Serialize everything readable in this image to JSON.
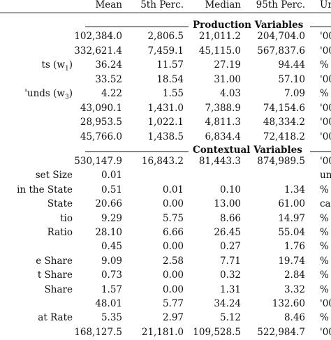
{
  "header": {
    "mean": "Mean",
    "p5": "5th Perc.",
    "median": "Median",
    "p95": "95th Perc.",
    "unit": "Ur"
  },
  "sections": {
    "production": "Production Variables",
    "contextual": "Contextual Variables"
  },
  "production_rows": [
    {
      "label": "",
      "mean": "102,384.0",
      "p5": "2,806.5",
      "median": "21,011.2",
      "p95": "204,704.0",
      "unit": "'00"
    },
    {
      "label": "",
      "mean": "332,621.4",
      "p5": "7,459.1",
      "median": "45,115.0",
      "p95": "567,837.6",
      "unit": "'00"
    },
    {
      "label": "ts (w",
      "sub": "1",
      "tail": ")",
      "mean": "36.24",
      "p5": "11.57",
      "median": "27.19",
      "p95": "94.44",
      "unit": "%"
    },
    {
      "label": "",
      "mean": "33.52",
      "p5": "18.54",
      "median": "31.00",
      "p95": "57.10",
      "unit": "'00"
    },
    {
      "label": "'unds (w",
      "sub": "3",
      "tail": ")",
      "mean": "4.22",
      "p5": "1.55",
      "median": "4.03",
      "p95": "7.09",
      "unit": "%"
    },
    {
      "label": "",
      "mean": "43,090.1",
      "p5": "1,431.0",
      "median": "7,388.9",
      "p95": "74,154.6",
      "unit": "'00"
    },
    {
      "label": "",
      "mean": "28,953.5",
      "p5": "1,022.1",
      "median": "4,811.3",
      "p95": "48,334.2",
      "unit": "'00"
    },
    {
      "label": "",
      "mean": "45,766.0",
      "p5": "1,438.5",
      "median": "6,834.4",
      "p95": "72,418.2",
      "unit": "'00"
    }
  ],
  "contextual_rows": [
    {
      "label": "",
      "mean": "530,147.9",
      "p5": "16,843.2",
      "median": "81,443.3",
      "p95": "874,989.5",
      "unit": "'00"
    },
    {
      "label": "set Size",
      "mean": "0.01",
      "p5": "",
      "median": "",
      "p95": "",
      "unit": "un"
    },
    {
      "label": "in the State",
      "mean": "0.51",
      "p5": "0.01",
      "median": "0.10",
      "p95": "1.34",
      "unit": "%"
    },
    {
      "label": "State",
      "mean": "20.66",
      "p5": "0.00",
      "median": "13.00",
      "p95": "61.00",
      "unit": "ca"
    },
    {
      "label": "tio",
      "mean": "9.29",
      "p5": "5.75",
      "median": "8.66",
      "p95": "14.97",
      "unit": "%"
    },
    {
      "label": "Ratio",
      "mean": "28.10",
      "p5": "6.66",
      "median": "26.45",
      "p95": "55.04",
      "unit": "%"
    },
    {
      "label": "",
      "mean": "0.45",
      "p5": "0.00",
      "median": "0.27",
      "p95": "1.76",
      "unit": "%"
    },
    {
      "label": "e Share",
      "mean": "9.09",
      "p5": "2.58",
      "median": "7.71",
      "p95": "19.74",
      "unit": "%"
    },
    {
      "label": "t Share",
      "mean": "0.73",
      "p5": "0.00",
      "median": "0.32",
      "p95": "2.84",
      "unit": "%"
    },
    {
      "label": "Share",
      "mean": "1.57",
      "p5": "0.00",
      "median": "1.31",
      "p95": "3.32",
      "unit": "%"
    },
    {
      "label": "",
      "mean": "48.01",
      "p5": "5.77",
      "median": "34.24",
      "p95": "132.60",
      "unit": "'00"
    },
    {
      "label": "at Rate",
      "mean": "5.35",
      "p5": "2.97",
      "median": "5.12",
      "p95": "8.46",
      "unit": "%"
    },
    {
      "label": "",
      "mean": "168,127.5",
      "p5": "21,181.0",
      "median": "109,528.5",
      "p95": "522,984.7",
      "unit": "'00"
    }
  ]
}
